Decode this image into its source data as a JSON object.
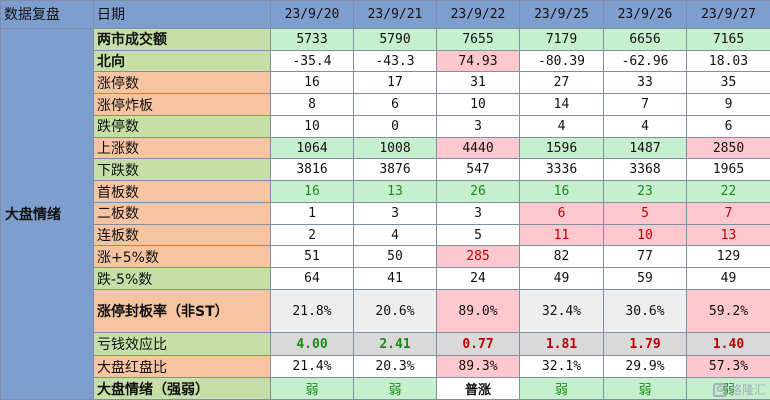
{
  "header": {
    "corner": "数据复盘",
    "date_label": "日期",
    "dates": [
      "23/9/20",
      "23/9/21",
      "23/9/22",
      "23/9/25",
      "23/9/26",
      "23/9/27"
    ]
  },
  "section_label": "大盘情绪",
  "rows": [
    {
      "label": "两市成交额",
      "values": [
        "5733",
        "5790",
        "7655",
        "7179",
        "6656",
        "7165"
      ]
    },
    {
      "label": "北向",
      "values": [
        "-35.4",
        "-43.3",
        "74.93",
        "-80.39",
        "-62.96",
        "18.03"
      ]
    },
    {
      "label": "涨停数",
      "values": [
        "16",
        "17",
        "31",
        "27",
        "33",
        "35"
      ]
    },
    {
      "label": "涨停炸板",
      "values": [
        "8",
        "6",
        "10",
        "14",
        "7",
        "9"
      ]
    },
    {
      "label": "跌停数",
      "values": [
        "10",
        "0",
        "3",
        "4",
        "4",
        "6"
      ]
    },
    {
      "label": "上涨数",
      "values": [
        "1064",
        "1008",
        "4440",
        "1596",
        "1487",
        "2850"
      ]
    },
    {
      "label": "下跌数",
      "values": [
        "3816",
        "3876",
        "547",
        "3336",
        "3368",
        "1965"
      ]
    },
    {
      "label": "首板数",
      "values": [
        "16",
        "13",
        "26",
        "16",
        "23",
        "22"
      ]
    },
    {
      "label": "二板数",
      "values": [
        "1",
        "3",
        "3",
        "6",
        "5",
        "7"
      ]
    },
    {
      "label": "连板数",
      "values": [
        "2",
        "4",
        "5",
        "11",
        "10",
        "13"
      ]
    },
    {
      "label": "涨+5%数",
      "values": [
        "51",
        "50",
        "285",
        "82",
        "77",
        "129"
      ]
    },
    {
      "label": "跌-5%数",
      "values": [
        "64",
        "41",
        "24",
        "49",
        "59",
        "49"
      ]
    },
    {
      "label": "涨停封板率（非ST）",
      "values": [
        "21.8%",
        "20.6%",
        "89.0%",
        "32.4%",
        "30.6%",
        "59.2%"
      ]
    },
    {
      "label": "亏钱效应比",
      "values": [
        "4.00",
        "2.41",
        "0.77",
        "1.81",
        "1.79",
        "1.40"
      ]
    },
    {
      "label": "大盘红盘比",
      "values": [
        "21.4%",
        "20.3%",
        "89.3%",
        "32.1%",
        "29.9%",
        "57.3%"
      ]
    },
    {
      "label": "大盘情绪（强弱）",
      "values": [
        "弱",
        "弱",
        "普涨",
        "弱",
        "弱",
        "弱"
      ]
    }
  ],
  "watermark": "格隆汇",
  "colors": {
    "header_blue": "#7f9ed0",
    "label_green": "#c5dfa6",
    "label_peach": "#f6c4a1",
    "cell_green": "#c6efce",
    "cell_pink": "#ffc7ce",
    "text_green": "#1a8a1a",
    "text_red": "#c00000"
  }
}
